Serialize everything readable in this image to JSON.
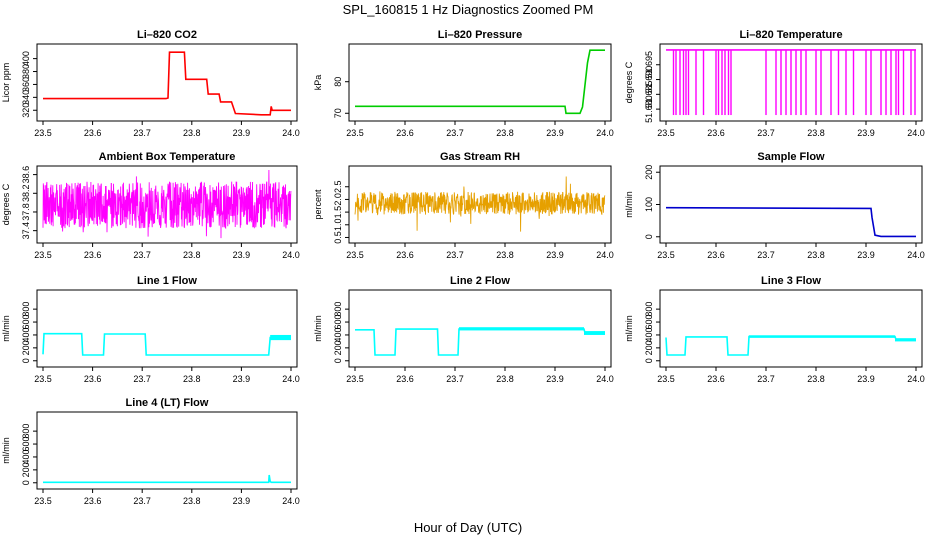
{
  "figure": {
    "title": "SPL_160815  1 Hz Diagnostics Zoomed PM",
    "xlabel": "Hour of Day (UTC)"
  },
  "chart_data": [
    {
      "id": "li820-co2",
      "type": "line",
      "title": "Li–820 CO2",
      "ylabel": "Licor ppm",
      "color": "#ff0000",
      "xlim": [
        23.5,
        24.0
      ],
      "ylim": [
        308,
        418
      ],
      "xticks": [
        23.5,
        23.6,
        23.7,
        23.8,
        23.9,
        24.0
      ],
      "yticks": [
        320,
        340,
        360,
        380,
        400
      ],
      "series": [
        {
          "x": [
            23.5,
            23.748,
            23.752,
            23.755,
            23.785,
            23.788,
            23.83,
            23.833,
            23.855,
            23.858,
            23.88,
            23.888,
            23.94,
            23.958,
            23.96,
            23.962,
            24.0
          ],
          "values": [
            338,
            338,
            339,
            410,
            410,
            368,
            368,
            345,
            345,
            333,
            333,
            315,
            313,
            313,
            326,
            320,
            320
          ]
        }
      ]
    },
    {
      "id": "li820-pressure",
      "type": "line",
      "title": "Li–820 Pressure",
      "ylabel": "kPa",
      "color": "#00cc00",
      "xlim": [
        23.5,
        24.0
      ],
      "ylim": [
        68.5,
        91
      ],
      "xticks": [
        23.5,
        23.6,
        23.7,
        23.8,
        23.9,
        24.0
      ],
      "yticks": [
        70,
        80
      ],
      "series": [
        {
          "x": [
            23.5,
            23.92,
            23.922,
            23.95,
            23.955,
            23.965,
            23.97,
            23.99,
            24.0
          ],
          "values": [
            72.2,
            72.2,
            70,
            70,
            72,
            86,
            90,
            90,
            90
          ]
        }
      ]
    },
    {
      "id": "li820-temperature",
      "type": "line",
      "title": "Li–820 Temperature",
      "ylabel": "degrees C",
      "color": "#ff00ff",
      "xlim": [
        23.5,
        24.0
      ],
      "ylim": [
        51.677,
        51.701
      ],
      "xticks": [
        23.5,
        23.6,
        23.7,
        23.8,
        23.9,
        24.0
      ],
      "yticks": [
        51.68,
        51.685,
        51.69,
        51.695
      ],
      "baseline": 51.7,
      "low": 51.678,
      "dips": [
        23.515,
        23.52,
        23.528,
        23.535,
        23.54,
        23.545,
        23.56,
        23.575,
        23.6,
        23.605,
        23.612,
        23.618,
        23.625,
        23.63,
        23.7,
        23.72,
        23.73,
        23.74,
        23.75,
        23.76,
        23.77,
        23.78,
        23.8,
        23.81,
        23.83,
        23.845,
        23.86,
        23.875,
        23.9,
        23.91,
        23.93,
        23.94,
        23.95,
        23.96,
        23.965,
        23.975,
        23.99,
        23.998
      ]
    },
    {
      "id": "ambient-box-temperature",
      "type": "line",
      "title": "Ambient Box Temperature",
      "ylabel": "degrees C",
      "color": "#ff00ff",
      "xlim": [
        23.5,
        24.0
      ],
      "ylim": [
        37.2,
        38.72
      ],
      "xticks": [
        23.5,
        23.6,
        23.7,
        23.8,
        23.9,
        24.0
      ],
      "yticks": [
        37.4,
        37.8,
        38.2,
        38.6
      ],
      "noise": {
        "center": 37.95,
        "amplitude": 0.5,
        "spikes": 0.75
      }
    },
    {
      "id": "gas-stream-rh",
      "type": "line",
      "title": "Gas Stream RH",
      "ylabel": "percent",
      "color": "#e6a000",
      "xlim": [
        23.5,
        24.0
      ],
      "ylim": [
        0.4,
        3.2
      ],
      "xticks": [
        23.5,
        23.6,
        23.7,
        23.8,
        23.9,
        24.0
      ],
      "yticks": [
        0.5,
        1.0,
        1.5,
        2.0,
        2.5
      ],
      "noise": {
        "center": 1.85,
        "amplitude": 0.45,
        "spikes": 1.15
      }
    },
    {
      "id": "sample-flow",
      "type": "line",
      "title": "Sample Flow",
      "ylabel": "ml/min",
      "color": "#0000cc",
      "xlim": [
        23.5,
        24.0
      ],
      "ylim": [
        -10,
        210
      ],
      "xticks": [
        23.5,
        23.6,
        23.7,
        23.8,
        23.9,
        24.0
      ],
      "yticks": [
        0,
        100,
        200
      ],
      "series": [
        {
          "x": [
            23.5,
            23.91,
            23.912,
            23.918,
            23.93,
            24.0
          ],
          "values": [
            90,
            88,
            60,
            5,
            1,
            1
          ]
        }
      ]
    },
    {
      "id": "line-1-flow",
      "type": "line",
      "title": "Line 1 Flow",
      "ylabel": "ml/min",
      "color": "#00ffff",
      "xlim": [
        23.5,
        24.0
      ],
      "ylim": [
        -50,
        1050
      ],
      "xticks": [
        23.5,
        23.6,
        23.7,
        23.8,
        23.9,
        24.0
      ],
      "yticks": [
        0,
        200,
        400,
        600,
        800
      ],
      "series": [
        {
          "x": [
            23.5,
            23.502,
            23.578,
            23.58,
            23.622,
            23.624,
            23.706,
            23.708,
            23.955,
            23.958,
            24.0
          ],
          "values": [
            100,
            420,
            420,
            90,
            90,
            415,
            415,
            90,
            90,
            360,
            360
          ]
        }
      ],
      "band": {
        "from": 23.958,
        "to": 24.0,
        "low": 320,
        "high": 400
      }
    },
    {
      "id": "line-2-flow",
      "type": "line",
      "title": "Line 2 Flow",
      "ylabel": "ml/min",
      "color": "#00ffff",
      "xlim": [
        23.5,
        24.0
      ],
      "ylim": [
        -50,
        1050
      ],
      "xticks": [
        23.5,
        23.6,
        23.7,
        23.8,
        23.9,
        24.0
      ],
      "yticks": [
        0,
        200,
        400,
        600,
        800
      ],
      "series": [
        {
          "x": [
            23.5,
            23.538,
            23.54,
            23.58,
            23.582,
            23.665,
            23.667,
            23.706,
            23.708,
            23.958,
            23.96,
            24.0
          ],
          "values": [
            480,
            480,
            90,
            90,
            490,
            490,
            90,
            90,
            490,
            490,
            430,
            430
          ]
        }
      ],
      "band": {
        "from": 23.708,
        "to": 23.958,
        "low": 470,
        "high": 520
      },
      "band2": {
        "from": 23.958,
        "to": 24.0,
        "low": 400,
        "high": 460
      }
    },
    {
      "id": "line-3-flow",
      "type": "line",
      "title": "Line 3 Flow",
      "ylabel": "ml/min",
      "color": "#00ffff",
      "xlim": [
        23.5,
        24.0
      ],
      "ylim": [
        -50,
        1050
      ],
      "xticks": [
        23.5,
        23.6,
        23.7,
        23.8,
        23.9,
        24.0
      ],
      "yticks": [
        0,
        200,
        400,
        600,
        800
      ],
      "series": [
        {
          "x": [
            23.5,
            23.502,
            23.538,
            23.54,
            23.622,
            23.624,
            23.664,
            23.666,
            23.958,
            23.96,
            24.0
          ],
          "values": [
            360,
            90,
            90,
            370,
            370,
            90,
            90,
            375,
            375,
            330,
            330
          ]
        }
      ],
      "band": {
        "from": 23.666,
        "to": 23.958,
        "low": 355,
        "high": 395
      },
      "band2": {
        "from": 23.958,
        "to": 24.0,
        "low": 300,
        "high": 350
      }
    },
    {
      "id": "line-4-lt-flow",
      "type": "line",
      "title": "Line 4 (LT) Flow",
      "ylabel": "ml/min",
      "color": "#00ffff",
      "xlim": [
        23.5,
        24.0
      ],
      "ylim": [
        -50,
        1050
      ],
      "xticks": [
        23.5,
        23.6,
        23.7,
        23.8,
        23.9,
        24.0
      ],
      "yticks": [
        0,
        200,
        400,
        600,
        800
      ],
      "series": [
        {
          "x": [
            23.5,
            23.955,
            23.956,
            23.958,
            23.96,
            24.0
          ],
          "values": [
            8,
            8,
            120,
            20,
            8,
            8
          ]
        }
      ]
    }
  ]
}
